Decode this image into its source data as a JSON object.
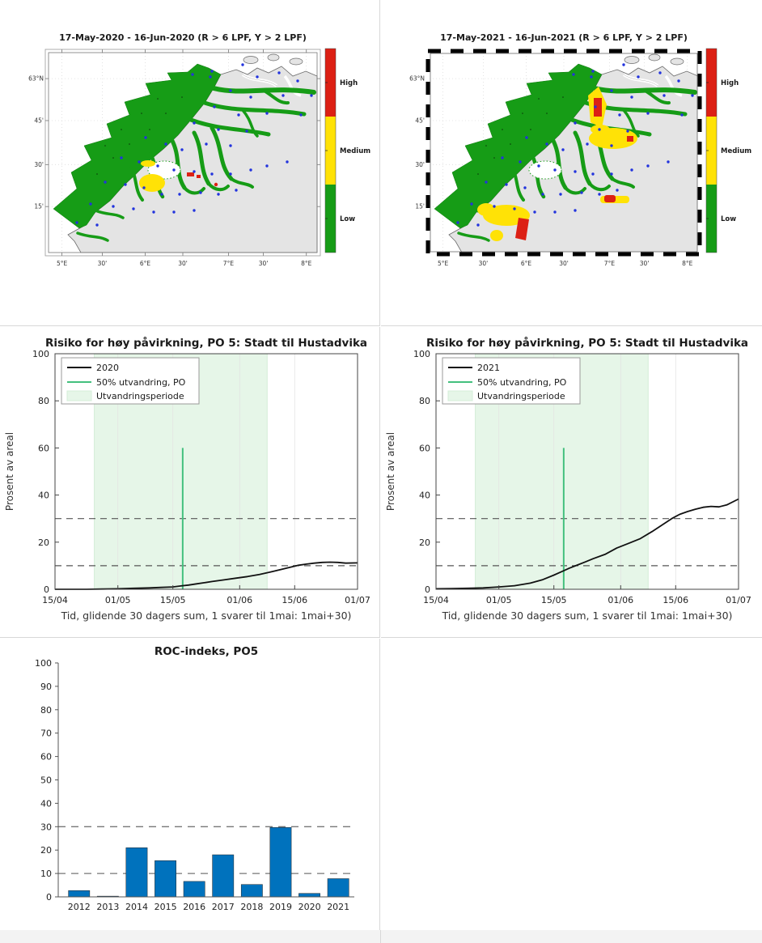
{
  "maps": [
    {
      "title": "17-May-2020  - 16-Jun-2020  (R > 6 LPF, Y > 2 LPF)",
      "variant": "2020"
    },
    {
      "title": "17-May-2021  - 16-Jun-2021  (R > 6 LPF, Y > 2 LPF)",
      "variant": "2021"
    }
  ],
  "map_axis": {
    "x_ticks": [
      "5°E",
      "30'",
      "6°E",
      "30'",
      "7°E",
      "30'",
      "8°E"
    ],
    "y_ticks": [
      "63°N",
      "45'",
      "30'",
      "15'"
    ]
  },
  "colorbar": {
    "labels": [
      "High",
      "Medium",
      "Low"
    ],
    "colors": [
      "#DC2014",
      "#FFE206",
      "#169C16"
    ]
  },
  "chart_data": [
    {
      "type": "line",
      "panel": "line-2020",
      "title": "Risiko for høy påvirkning, PO 5: Stadt til Hustadvika",
      "xlabel": "Tid, glidende 30 dagers sum, 1 svarer til 1mai: 1mai+30)",
      "ylabel": "Prosent av areal",
      "ylim": [
        0,
        100
      ],
      "yticks": [
        0,
        20,
        40,
        60,
        80,
        100
      ],
      "x_tick_days": [
        0,
        16,
        30,
        47,
        61,
        77
      ],
      "x_tick_labels": [
        "15/04",
        "01/05",
        "15/05",
        "01/06",
        "15/06",
        "01/07"
      ],
      "dashed_y": [
        10,
        30
      ],
      "band_days": [
        10,
        54
      ],
      "vline": {
        "day": 32.5,
        "top": 60
      },
      "legend": [
        "2020",
        "50% utvandring, PO",
        "Utvandringsperiode"
      ],
      "series": [
        {
          "name": "2020",
          "x": [
            0,
            4,
            8,
            12,
            16,
            20,
            24,
            27,
            30,
            32,
            34,
            36,
            38,
            40,
            43,
            46,
            49,
            52,
            55,
            58,
            60,
            62,
            64,
            66,
            68,
            70,
            72,
            74,
            77
          ],
          "y": [
            0,
            0,
            0,
            0.1,
            0.2,
            0.4,
            0.6,
            0.8,
            1.0,
            1.4,
            1.8,
            2.3,
            2.8,
            3.3,
            4.0,
            4.7,
            5.4,
            6.3,
            7.4,
            8.6,
            9.4,
            10.2,
            10.7,
            11.1,
            11.4,
            11.5,
            11.4,
            11.1,
            11.2
          ]
        }
      ]
    },
    {
      "type": "line",
      "panel": "line-2021",
      "title": "Risiko for høy påvirkning, PO 5: Stadt til Hustadvika",
      "xlabel": "Tid, glidende 30 dagers sum, 1 svarer til 1mai: 1mai+30)",
      "ylabel": "Prosent av areal",
      "ylim": [
        0,
        100
      ],
      "yticks": [
        0,
        20,
        40,
        60,
        80,
        100
      ],
      "x_tick_days": [
        0,
        16,
        30,
        47,
        61,
        77
      ],
      "x_tick_labels": [
        "15/04",
        "01/05",
        "15/05",
        "01/06",
        "15/06",
        "01/07"
      ],
      "dashed_y": [
        10,
        30
      ],
      "band_days": [
        10,
        54
      ],
      "vline": {
        "day": 32.5,
        "top": 60
      },
      "legend": [
        "2021",
        "50% utvandring, PO",
        "Utvandringsperiode"
      ],
      "series": [
        {
          "name": "2021",
          "x": [
            0,
            4,
            8,
            12,
            16,
            20,
            24,
            27,
            30,
            32,
            34,
            36,
            38,
            40,
            43,
            46,
            49,
            52,
            55,
            58,
            60,
            62,
            64,
            66,
            68,
            70,
            72,
            74,
            77
          ],
          "y": [
            0.2,
            0.3,
            0.4,
            0.6,
            1.0,
            1.5,
            2.6,
            4.0,
            6.0,
            7.5,
            9.0,
            10.3,
            11.6,
            13.0,
            14.8,
            17.5,
            19.5,
            21.5,
            24.5,
            27.8,
            30.0,
            31.8,
            33.0,
            34.0,
            34.8,
            35.2,
            35.0,
            35.8,
            38.3
          ]
        }
      ]
    },
    {
      "type": "bar",
      "panel": "bar-roc",
      "title": "ROC-indeks, PO5",
      "categories": [
        "2012",
        "2013",
        "2014",
        "2015",
        "2016",
        "2017",
        "2018",
        "2019",
        "2020",
        "2021"
      ],
      "values": [
        2.7,
        0.3,
        21,
        15.5,
        6.6,
        18,
        5.3,
        29.7,
        1.5,
        7.8
      ],
      "dashed_y": [
        10,
        30
      ],
      "ylim": [
        0,
        100
      ],
      "yticks": [
        0,
        10,
        20,
        30,
        40,
        50,
        60,
        70,
        80,
        90,
        100
      ],
      "xlabel": "",
      "ylabel": ""
    }
  ],
  "colors": {
    "bar": "#0072BD",
    "line": "#111111",
    "vline": "#44C07E",
    "band": "#E6F6E8",
    "band_edge": "#D4EDD8",
    "risk_low": "#169C16",
    "risk_medium": "#FFE206",
    "risk_high": "#DC2014",
    "land": "#E4E4E4",
    "coast": "#6A6A6A",
    "dots": "#2233DD",
    "dash": "#555555",
    "grid": "#E2E2E2"
  }
}
